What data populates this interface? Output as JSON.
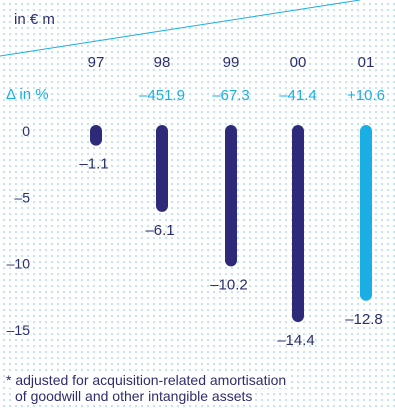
{
  "chart_data": {
    "type": "bar",
    "title": "",
    "unit_label": "in € m",
    "delta_label": "Δ in %",
    "categories": [
      "97",
      "98",
      "99",
      "00",
      "01"
    ],
    "values": [
      -1.1,
      -6.1,
      -10.2,
      -14.4,
      -12.8
    ],
    "value_labels": [
      "–1.1",
      "–6.1",
      "–10.2",
      "–14.4",
      "–12.8"
    ],
    "delta_values": [
      "",
      "–451.9",
      "–67.3",
      "–41.4",
      "+10.6"
    ],
    "ylim": [
      -15,
      0
    ],
    "yticks": [
      0,
      -5,
      -10,
      -15
    ],
    "ytick_labels": [
      "0",
      "–5",
      "–10",
      "–15"
    ],
    "colors": {
      "bar": "#2e2a79",
      "bar_highlight": "#1aaee5",
      "text": "#2d2d6e",
      "accent": "#1aaee5"
    },
    "highlight_index": 4
  },
  "footnote": {
    "line1": "* adjusted for acquisition-related amortisation",
    "line2": "of goodwill and other intangible assets"
  }
}
